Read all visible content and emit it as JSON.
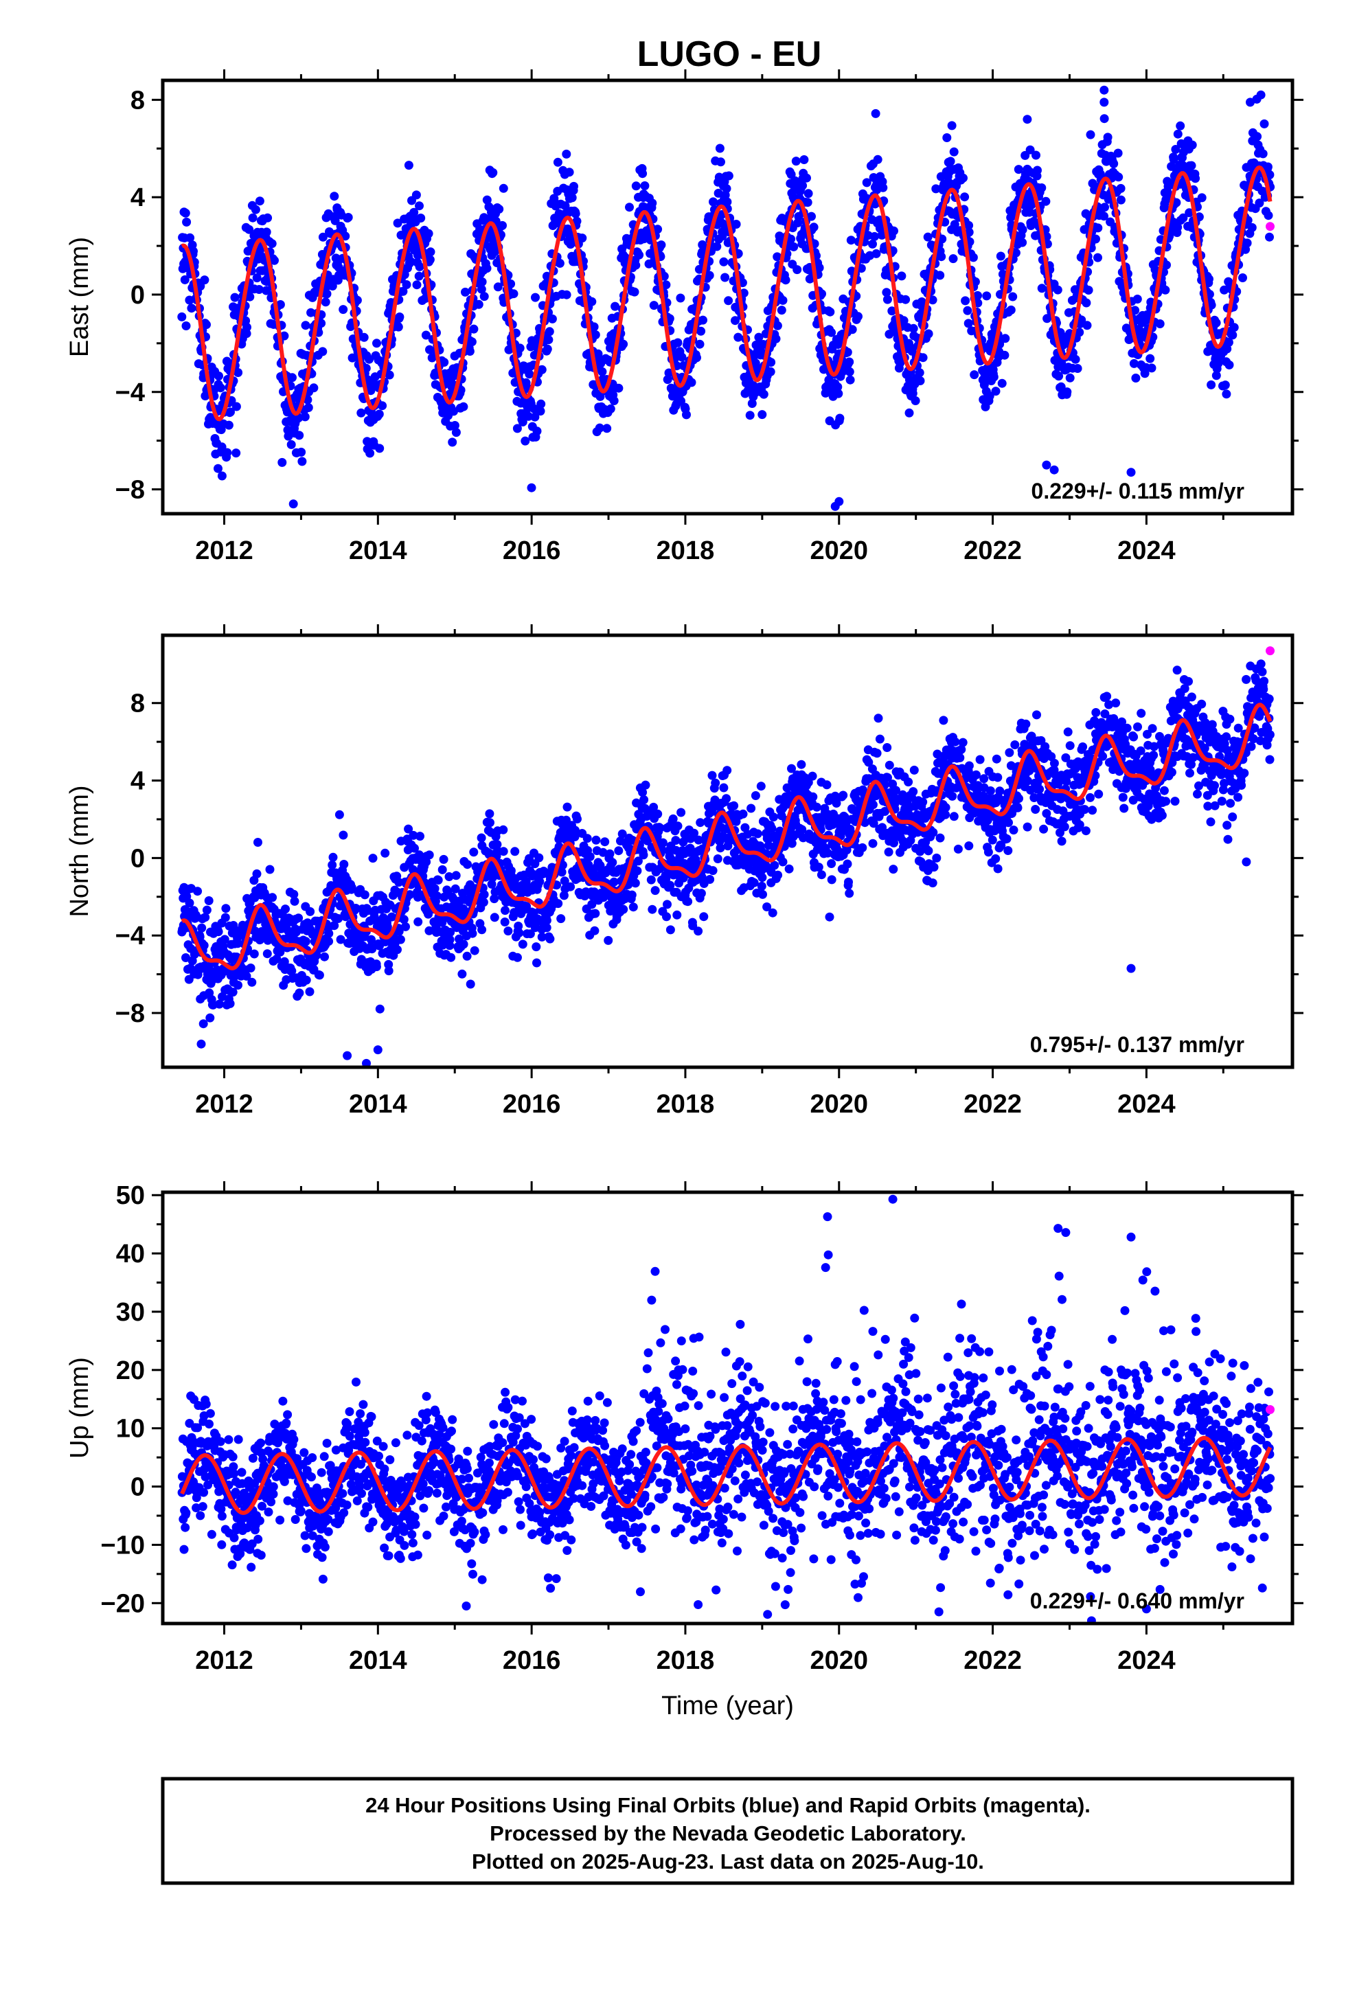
{
  "title": "LUGO - EU",
  "colors": {
    "final": "#0000ff",
    "rapid": "#ff00ff",
    "model": "#ff1a1a",
    "frame": "#000000"
  },
  "footer": {
    "line1": "24 Hour Positions Using Final Orbits (blue) and Rapid Orbits (magenta).",
    "line2": "Processed by the Nevada Geodetic Laboratory.",
    "line3": "Plotted on 2025-Aug-23. Last data on 2025-Aug-10."
  },
  "chart_data": [
    {
      "type": "scatter",
      "component": "east",
      "ylabel": "East (mm)",
      "xlabel": "",
      "xlim": [
        2011.2,
        2025.9
      ],
      "ylim": [
        -9,
        8.8
      ],
      "xticks": [
        2012,
        2014,
        2016,
        2018,
        2020,
        2022,
        2024
      ],
      "yticks": [
        -8,
        -4,
        0,
        4,
        8
      ],
      "ytick_labels": [
        "−8",
        "−4",
        "0",
        "4",
        "8"
      ],
      "rate_label": "0.229+/- 0.115 mm/yr",
      "data_start": 2011.45,
      "data_end": 2025.61,
      "model": {
        "offset": -1.55,
        "trend": 0.229,
        "amp_start": 3.6,
        "amp_end": 3.6,
        "phase_peak": 0.45,
        "semi_amp": 0.2,
        "semi_peak": 0.1
      },
      "scatter_sd": 1.05,
      "outliers": [
        [
          2012.9,
          -8.6
        ],
        [
          2019.95,
          -8.7
        ],
        [
          2020.0,
          -8.5
        ],
        [
          2023.45,
          8.4
        ],
        [
          2023.45,
          7.9
        ],
        [
          2022.45,
          7.2
        ],
        [
          2022.7,
          -7.0
        ],
        [
          2022.8,
          -7.2
        ],
        [
          2023.8,
          -7.3
        ],
        [
          2025.35,
          7.9
        ]
      ],
      "rapid_points": [
        [
          2025.61,
          2.8
        ]
      ],
      "grid": false
    },
    {
      "type": "scatter",
      "component": "north",
      "ylabel": "North (mm)",
      "xlabel": "",
      "xlim": [
        2011.2,
        2025.9
      ],
      "ylim": [
        -10.8,
        11.5
      ],
      "xticks": [
        2012,
        2014,
        2016,
        2018,
        2020,
        2022,
        2024
      ],
      "yticks": [
        -8,
        -4,
        0,
        4,
        8
      ],
      "ytick_labels": [
        "−8",
        "−4",
        "0",
        "4",
        "8"
      ],
      "rate_label": "0.795+/- 0.137 mm/yr",
      "data_start": 2011.45,
      "data_end": 2025.61,
      "model": {
        "offset": -5.0,
        "trend": 0.795,
        "amp_start": 1.3,
        "amp_end": 1.3,
        "phase_peak": 0.5,
        "semi_amp": 0.5,
        "semi_peak": 0.45
      },
      "scatter_sd": 1.2,
      "outliers": [
        [
          2013.6,
          -10.2
        ],
        [
          2013.85,
          -10.6
        ],
        [
          2014.0,
          -9.9
        ],
        [
          2011.7,
          -9.6
        ],
        [
          2023.8,
          -5.7
        ],
        [
          2025.3,
          -0.2
        ],
        [
          2024.4,
          9.7
        ]
      ],
      "rapid_points": [
        [
          2025.61,
          10.7
        ]
      ],
      "grid": false
    },
    {
      "type": "scatter",
      "component": "up",
      "ylabel": "Up (mm)",
      "xlabel": "Time (year)",
      "xlim": [
        2011.2,
        2025.9
      ],
      "ylim": [
        -23.5,
        50.5
      ],
      "xticks": [
        2012,
        2014,
        2016,
        2018,
        2020,
        2022,
        2024
      ],
      "yticks": [
        -20,
        -10,
        0,
        10,
        20,
        30,
        40,
        50
      ],
      "ytick_labels": [
        "−20",
        "−10",
        "0",
        "10",
        "20",
        "30",
        "40",
        "50"
      ],
      "rate_label": "0.229+/- 0.640 mm/yr",
      "data_start": 2011.45,
      "data_end": 2025.61,
      "model": {
        "offset": 0.3,
        "trend": 0.229,
        "amp_start": 5.0,
        "amp_end": 5.0,
        "phase_peak": 0.75,
        "semi_amp": 0.0,
        "semi_peak": 0.0
      },
      "scatter_sd": 4.5,
      "noisy_after": 2017.3,
      "noisy_sd": 11.0,
      "outliers": [
        [
          2020.7,
          49.3
        ],
        [
          2019.85,
          46.3
        ],
        [
          2022.85,
          44.3
        ],
        [
          2022.95,
          43.6
        ],
        [
          2023.8,
          42.8
        ],
        [
          2021.3,
          -21.5
        ],
        [
          2015.15,
          -20.5
        ],
        [
          2024.0,
          -21.0
        ]
      ],
      "rapid_points": [
        [
          2025.61,
          13.2
        ]
      ],
      "grid": false
    }
  ]
}
